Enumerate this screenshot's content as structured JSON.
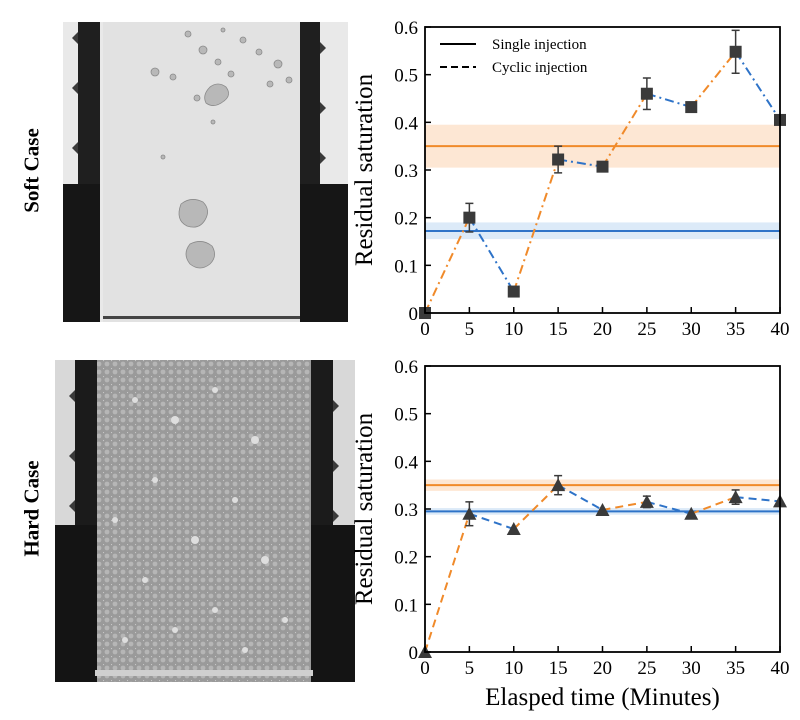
{
  "row_labels": {
    "top": "Soft Case",
    "bottom": "Hard Case"
  },
  "colors": {
    "orange": "#f08a2a",
    "blue": "#2e73c8",
    "marker": "#3a3a3a",
    "band_orange": "#fde3cc",
    "band_blue": "#d6e6f7"
  },
  "chart_data": [
    {
      "type": "line",
      "panel": "Soft Case",
      "ylabel": "Residual saturation",
      "xlabel": "",
      "xlim": [
        0,
        40
      ],
      "ylim": [
        0,
        0.6
      ],
      "xticks": [
        0,
        5,
        10,
        15,
        20,
        25,
        30,
        35,
        40
      ],
      "yticks": [
        "0",
        "0.1",
        "0.2",
        "0.3",
        "0.4",
        "0.5",
        "0.6"
      ],
      "legend": {
        "position": "top-left",
        "entries": [
          {
            "label": "Single injection",
            "style": "solid"
          },
          {
            "label": "Cyclic injection",
            "style": "dashed"
          }
        ]
      },
      "single_injection": [
        {
          "name": "orange",
          "value": 0.35,
          "band": [
            0.305,
            0.395
          ]
        },
        {
          "name": "blue",
          "value": 0.172,
          "band": [
            0.155,
            0.19
          ]
        }
      ],
      "marker": "square",
      "series": [
        {
          "name": "cyclic-orange",
          "style": "dashdot",
          "x": [
            0,
            5,
            10,
            15,
            20,
            25,
            30,
            35,
            40
          ],
          "values": [
            0.0,
            0.2,
            0.045,
            0.322,
            0.307,
            0.46,
            0.432,
            0.548,
            0.405
          ],
          "errors": [
            0,
            0.03,
            0,
            0.028,
            0,
            0.033,
            0,
            0.045,
            0
          ]
        }
      ],
      "segments": [
        {
          "from": 0,
          "to": 5,
          "color": "orange"
        },
        {
          "from": 5,
          "to": 10,
          "color": "blue"
        },
        {
          "from": 10,
          "to": 15,
          "color": "orange"
        },
        {
          "from": 15,
          "to": 20,
          "color": "blue"
        },
        {
          "from": 20,
          "to": 25,
          "color": "orange"
        },
        {
          "from": 25,
          "to": 30,
          "color": "blue"
        },
        {
          "from": 30,
          "to": 35,
          "color": "orange"
        },
        {
          "from": 35,
          "to": 40,
          "color": "blue"
        }
      ]
    },
    {
      "type": "line",
      "panel": "Hard Case",
      "ylabel": "Residual saturation",
      "xlabel": "Elasped time (Minutes)",
      "xlim": [
        0,
        40
      ],
      "ylim": [
        0,
        0.6
      ],
      "xticks": [
        0,
        5,
        10,
        15,
        20,
        25,
        30,
        35,
        40
      ],
      "yticks": [
        "0",
        "0.1",
        "0.2",
        "0.3",
        "0.4",
        "0.5",
        "0.6"
      ],
      "single_injection": [
        {
          "name": "orange",
          "value": 0.35,
          "band": [
            0.338,
            0.362
          ]
        },
        {
          "name": "blue",
          "value": 0.295,
          "band": [
            0.288,
            0.302
          ]
        }
      ],
      "marker": "triangle",
      "series": [
        {
          "name": "cyclic",
          "style": "dashed",
          "x": [
            0,
            5,
            10,
            15,
            20,
            25,
            30,
            35,
            40
          ],
          "values": [
            0.0,
            0.29,
            0.258,
            0.35,
            0.298,
            0.315,
            0.29,
            0.325,
            0.316
          ],
          "errors": [
            0,
            0.025,
            0,
            0.02,
            0,
            0.012,
            0,
            0.015,
            0
          ]
        }
      ],
      "segments": [
        {
          "from": 0,
          "to": 5,
          "color": "orange"
        },
        {
          "from": 5,
          "to": 10,
          "color": "blue"
        },
        {
          "from": 10,
          "to": 15,
          "color": "orange"
        },
        {
          "from": 15,
          "to": 20,
          "color": "blue"
        },
        {
          "from": 20,
          "to": 25,
          "color": "orange"
        },
        {
          "from": 25,
          "to": 30,
          "color": "blue"
        },
        {
          "from": 30,
          "to": 35,
          "color": "orange"
        },
        {
          "from": 35,
          "to": 40,
          "color": "blue"
        }
      ]
    }
  ]
}
